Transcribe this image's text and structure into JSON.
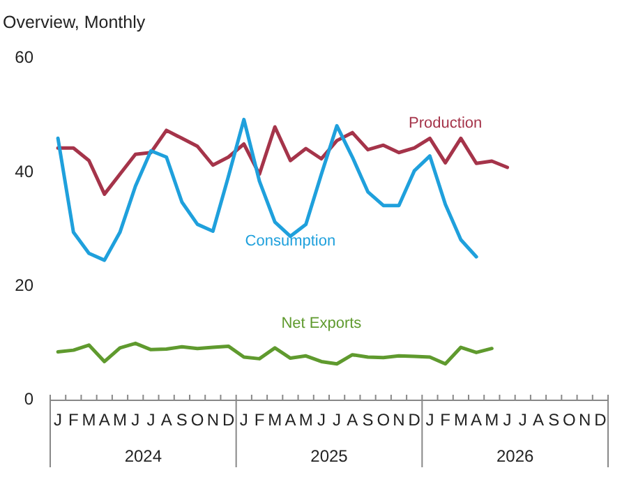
{
  "chart_data": {
    "type": "line",
    "title": "Overview, Monthly",
    "categories": [
      "J",
      "F",
      "M",
      "A",
      "M",
      "J",
      "J",
      "A",
      "S",
      "O",
      "N",
      "D",
      "J",
      "F",
      "M",
      "A",
      "M",
      "J",
      "J",
      "A",
      "S",
      "O",
      "N",
      "D",
      "J",
      "F",
      "M",
      "A",
      "M",
      "J",
      "J",
      "A",
      "S",
      "O",
      "N",
      "D"
    ],
    "ylim": [
      0,
      60
    ],
    "yticks": [
      0,
      20,
      40,
      60
    ],
    "grid": false,
    "annotations": [
      "2024",
      "2025",
      "2026"
    ],
    "series": [
      {
        "name": "Production",
        "color": "#a5344a",
        "values": [
          44.3,
          44.3,
          42.1,
          36.2,
          39.7,
          43.2,
          43.5,
          47.4,
          46,
          44.6,
          41.3,
          42.7,
          45,
          39.7,
          48,
          42.1,
          44.2,
          42.4,
          45.6,
          47,
          44,
          44.8,
          43.5,
          44.3,
          46,
          41.7,
          46,
          41.6,
          42,
          40.9,
          null,
          null,
          null,
          null,
          null,
          null
        ]
      },
      {
        "name": "Consumption",
        "color": "#1fa0dc",
        "values": [
          46,
          29.5,
          25.8,
          24.6,
          29.5,
          37.6,
          43.8,
          42.7,
          34.8,
          30.9,
          29.7,
          39.3,
          49.3,
          38.5,
          31.3,
          28.8,
          30.9,
          39.7,
          48.2,
          42.7,
          36.6,
          34.2,
          34.2,
          40.3,
          42.9,
          34.4,
          28.2,
          25.2,
          null,
          null,
          null,
          null,
          null,
          null,
          null,
          null
        ]
      },
      {
        "name": "Net Exports",
        "color": "#5f9a2e",
        "values": [
          8.5,
          8.8,
          9.7,
          6.8,
          9.2,
          10,
          8.9,
          9,
          9.4,
          9.1,
          9.3,
          9.5,
          7.6,
          7.3,
          9.2,
          7.4,
          7.8,
          6.8,
          6.4,
          8,
          7.6,
          7.5,
          7.8,
          7.7,
          7.6,
          6.4,
          9.3,
          8.4,
          9.1,
          null,
          null,
          null,
          null,
          null,
          null,
          null
        ]
      }
    ]
  }
}
